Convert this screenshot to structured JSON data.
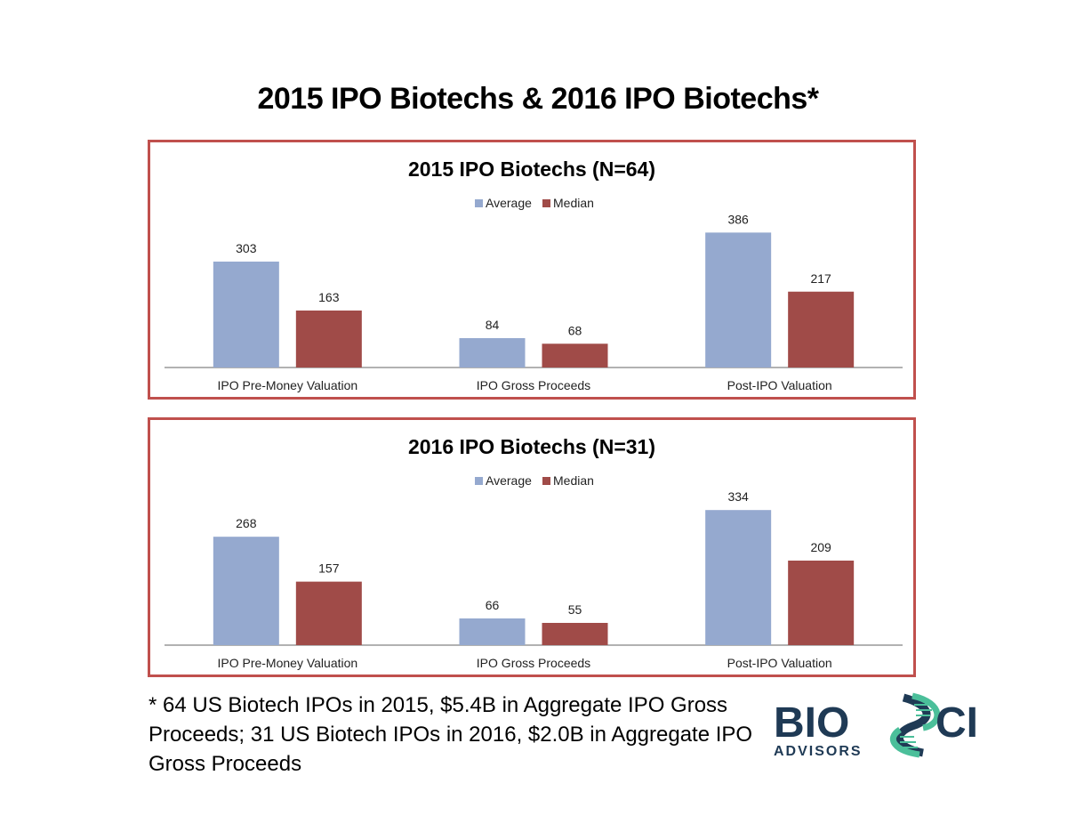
{
  "page_title": "2015 IPO Biotechs & 2016 IPO Biotechs*",
  "footnote": "* 64 US Biotech IPOs in 2015, $5.4B in Aggregate IPO Gross Proceeds; 31 US Biotech IPOs in 2016, $2.0B in Aggregate IPO Gross Proceeds",
  "logo": {
    "text_main_1": "BIO",
    "text_main_2": "CI",
    "text_sub": "ADVISORS"
  },
  "colors": {
    "average": "#95a9cf",
    "median": "#a04b48",
    "border": "#c0504d",
    "logo_navy": "#1f3a55",
    "logo_teal": "#4bbf9a"
  },
  "chart_data": [
    {
      "type": "bar",
      "title": "2015 IPO Biotechs (N=64)",
      "categories": [
        "IPO Pre-Money Valuation",
        "IPO Gross Proceeds",
        "Post-IPO Valuation"
      ],
      "series": [
        {
          "name": "Average",
          "values": [
            303,
            84,
            386
          ]
        },
        {
          "name": "Median",
          "values": [
            163,
            68,
            217
          ]
        }
      ],
      "legend": "top-center",
      "ylim": [
        0,
        420
      ],
      "grid": false
    },
    {
      "type": "bar",
      "title": "2016 IPO Biotechs (N=31)",
      "categories": [
        "IPO Pre-Money Valuation",
        "IPO Gross Proceeds",
        "Post-IPO Valuation"
      ],
      "series": [
        {
          "name": "Average",
          "values": [
            268,
            66,
            334
          ]
        },
        {
          "name": "Median",
          "values": [
            157,
            55,
            209
          ]
        }
      ],
      "legend": "top-center",
      "ylim": [
        0,
        363
      ],
      "grid": false
    }
  ]
}
